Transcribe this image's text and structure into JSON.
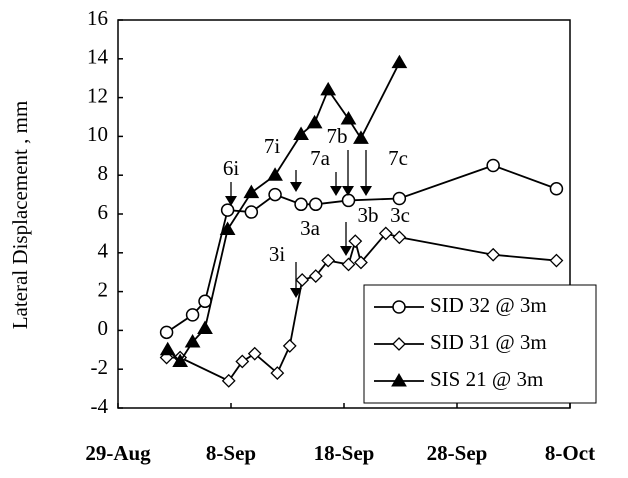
{
  "chart_data": {
    "type": "line",
    "ylabel": "Lateral Displacement , mm",
    "xlim": [
      0,
      40
    ],
    "xticks": [
      {
        "value": 0,
        "label": "29-Aug"
      },
      {
        "value": 10,
        "label": "8-Sep"
      },
      {
        "value": 20,
        "label": "18-Sep"
      },
      {
        "value": 30,
        "label": "28-Sep"
      },
      {
        "value": 40,
        "label": "8-Oct"
      }
    ],
    "ylim": [
      -4,
      16
    ],
    "yticks": [
      -4,
      -2,
      0,
      2,
      4,
      6,
      8,
      10,
      12,
      14,
      16
    ],
    "legend": "lower right",
    "series": [
      {
        "name": "SID 32 @ 3m",
        "color": "#000000",
        "marker": "circle",
        "x": [
          4.3,
          6.6,
          7.7,
          9.7,
          11.8,
          13.9,
          16.2,
          17.5,
          20.4,
          24.9,
          33.2,
          38.8
        ],
        "values": [
          -0.1,
          0.8,
          1.5,
          6.2,
          6.1,
          7.0,
          6.5,
          6.5,
          6.7,
          6.8,
          8.5,
          7.3
        ]
      },
      {
        "name": "SID 31 @ 3m",
        "color": "#000000",
        "marker": "diamond",
        "x": [
          4.3,
          5.5,
          9.8,
          11,
          12.1,
          14.1,
          15.2,
          16.3,
          17.5,
          18.6,
          20.4,
          21,
          21.5,
          23.7,
          24.9,
          33.2,
          38.8
        ],
        "values": [
          -1.4,
          -1.4,
          -2.6,
          -1.6,
          -1.2,
          -2.2,
          -0.8,
          2.6,
          2.8,
          3.6,
          3.4,
          4.6,
          3.5,
          5.0,
          4.8,
          3.9,
          3.6
        ]
      },
      {
        "name": "SIS  21 @ 3m",
        "color": "#000000",
        "marker": "triangle",
        "x": [
          4.4,
          5.5,
          6.6,
          7.7,
          9.7,
          11.8,
          13.9,
          16.2,
          17.4,
          18.6,
          20.4,
          21.5,
          24.9
        ],
        "values": [
          -1.0,
          -1.6,
          -0.6,
          0.1,
          5.2,
          7.1,
          8.0,
          10.1,
          10.7,
          12.4,
          10.9,
          9.9,
          13.8
        ]
      }
    ],
    "annotations": [
      "6i",
      "7i",
      "7a",
      "7b",
      "7c",
      "3i",
      "3a",
      "3b",
      "3c"
    ]
  }
}
